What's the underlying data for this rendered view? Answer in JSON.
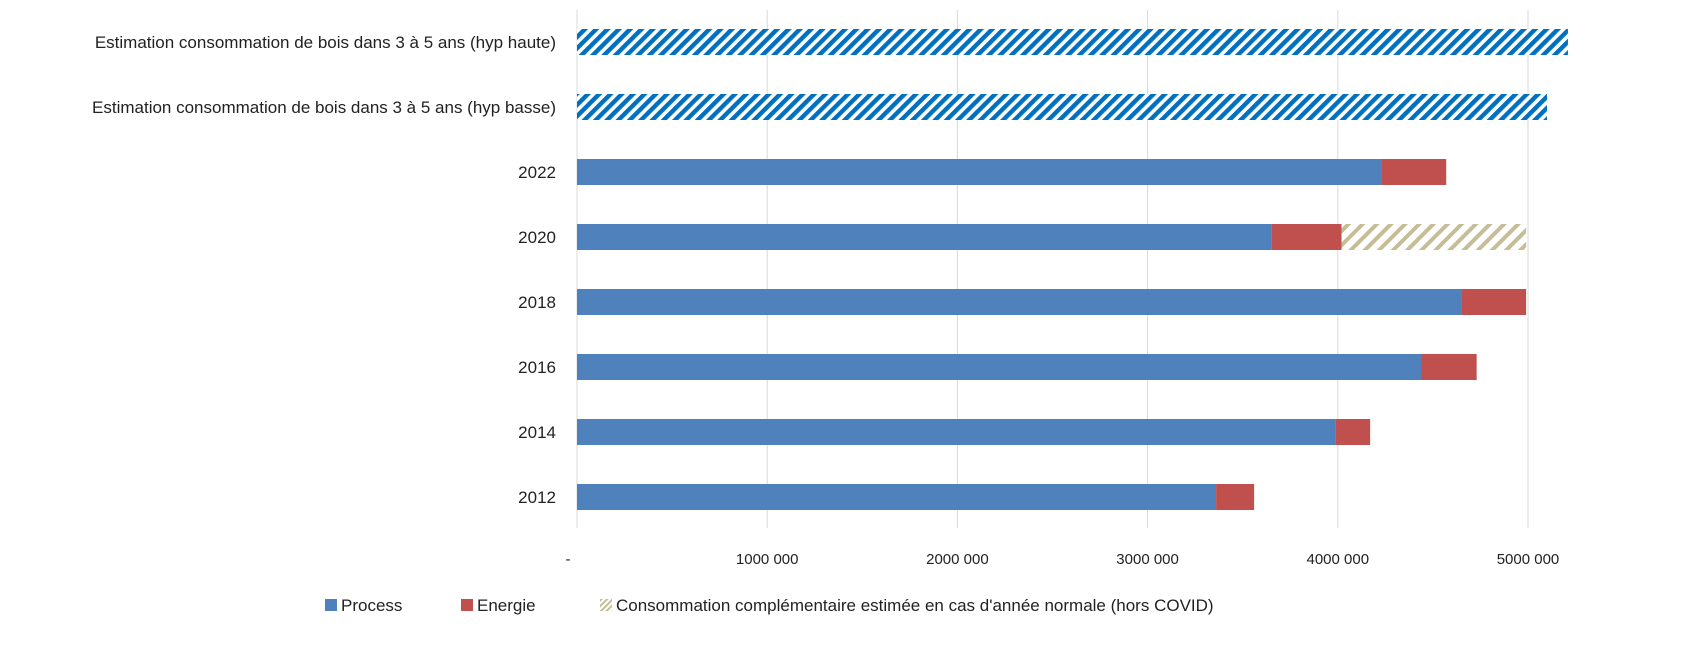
{
  "chart_data": {
    "type": "bar",
    "orientation": "horizontal",
    "stacked": true,
    "categories": [
      "Estimation consommation de bois dans 3 à 5 ans (hyp haute)",
      "Estimation consommation de bois dans 3 à 5 ans (hyp basse)",
      "2022",
      "2020",
      "2018",
      "2016",
      "2014",
      "2012"
    ],
    "series": [
      {
        "name": "Process",
        "color": "#4f81bd",
        "pattern": "solid",
        "values": [
          null,
          null,
          4230000,
          3650000,
          4650000,
          4440000,
          3990000,
          3360000
        ]
      },
      {
        "name": "Energie",
        "color": "#c0504d",
        "pattern": "solid",
        "values": [
          null,
          null,
          340000,
          370000,
          340000,
          290000,
          180000,
          200000
        ]
      },
      {
        "name": "Consommation complémentaire estimée en cas d'année normale (hors COVID)",
        "color": "#c4bd97",
        "pattern": "hatch",
        "values": [
          null,
          null,
          null,
          970000,
          null,
          null,
          null,
          null
        ]
      }
    ],
    "estimates": {
      "color": "#0070c0",
      "pattern": "hatch",
      "values": [
        5210000,
        5100000,
        null,
        null,
        null,
        null,
        null,
        null
      ]
    },
    "xlim": [
      0,
      5200000
    ],
    "xticks": [
      0,
      1000000,
      2000000,
      3000000,
      4000000,
      5000000
    ],
    "xtick_labels": [
      "-",
      "1000 000",
      "2000 000",
      "3000 000",
      "4000 000",
      "5000 000"
    ],
    "grid": true,
    "legend_position": "bottom",
    "title": "",
    "xlabel": "",
    "ylabel": ""
  }
}
